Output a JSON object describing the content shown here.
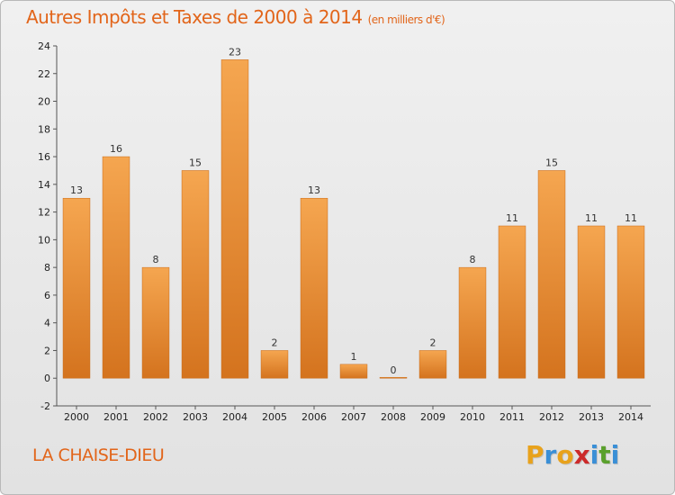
{
  "header": {
    "title": "Autres Impôts et Taxes de 2000 à 2014",
    "unit": "(en milliers d'€)"
  },
  "footer": {
    "place": "LA CHAISE-DIEU",
    "logo_letters": [
      "P",
      "r",
      "o",
      "x",
      "i",
      "t",
      "i"
    ],
    "logo_colors": [
      "#e8a21c",
      "#3a8fd6",
      "#e8a21c",
      "#cc2a2a",
      "#3a8fd6",
      "#5aa02c",
      "#3a8fd6"
    ]
  },
  "colors": {
    "accent": "#e2651a",
    "bar_top": "#f5a650",
    "bar_bottom": "#d4731e"
  },
  "chart_data": {
    "type": "bar",
    "title": "Autres Impôts et Taxes de 2000 à 2014",
    "subtitle": "(en milliers d'€)",
    "categories": [
      "2000",
      "2001",
      "2002",
      "2003",
      "2004",
      "2005",
      "2006",
      "2007",
      "2008",
      "2009",
      "2010",
      "2011",
      "2012",
      "2013",
      "2014"
    ],
    "values": [
      13,
      16,
      8,
      15,
      23,
      2,
      13,
      1,
      0,
      2,
      8,
      11,
      15,
      11,
      11
    ],
    "ylim": [
      -2,
      24
    ],
    "yticks": [
      -2,
      0,
      2,
      4,
      6,
      8,
      10,
      12,
      14,
      16,
      18,
      20,
      22,
      24
    ],
    "grid": false,
    "xlabel": "",
    "ylabel": ""
  }
}
